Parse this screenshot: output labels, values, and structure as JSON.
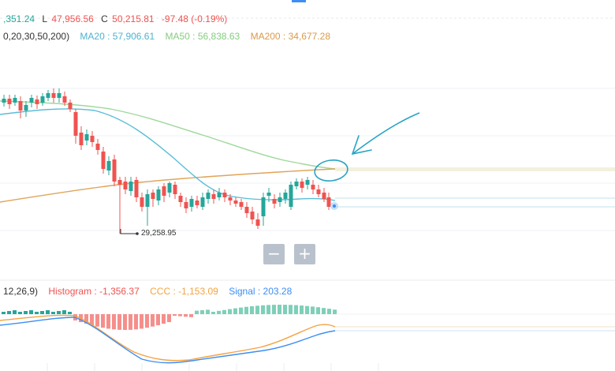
{
  "ohlc": {
    "open_fragment": ",351.24",
    "low_prefix": "L",
    "low_value": "47,956.56",
    "close_prefix": "C",
    "close_value": "50,215.81",
    "change": "-97.48 (-0.19%)"
  },
  "ma_legend": {
    "params": "0,20,30,50,200)",
    "ma20": "MA20 : 57,906.61",
    "ma50": "MA50 : 56,838.63",
    "ma200": "MA200 : 34,677.28"
  },
  "annotations": {
    "low_marker": "29,258.95"
  },
  "zoom": {
    "minus": "−",
    "plus": "+"
  },
  "macd_legend": {
    "params": "12,26,9)",
    "histogram": "Histogram : -1,356.37",
    "ccc": "CCC : -1,153.09",
    "signal": "Signal : 203.28"
  },
  "colors": {
    "up": "#26a69a",
    "down": "#ef5350",
    "ma20": "#5bbdd6",
    "ma50": "#9fd89a",
    "ma200": "#e0a45a",
    "drawing": "#26a3c4",
    "signal": "#3d8df5",
    "ccc": "#f4a340",
    "hist_up": "#26a69a",
    "hist_down": "#ef5350"
  },
  "icons": {
    "drawing_arrow": "arrow-drawing-icon",
    "drawing_circle": "circle-drawing-icon"
  }
}
